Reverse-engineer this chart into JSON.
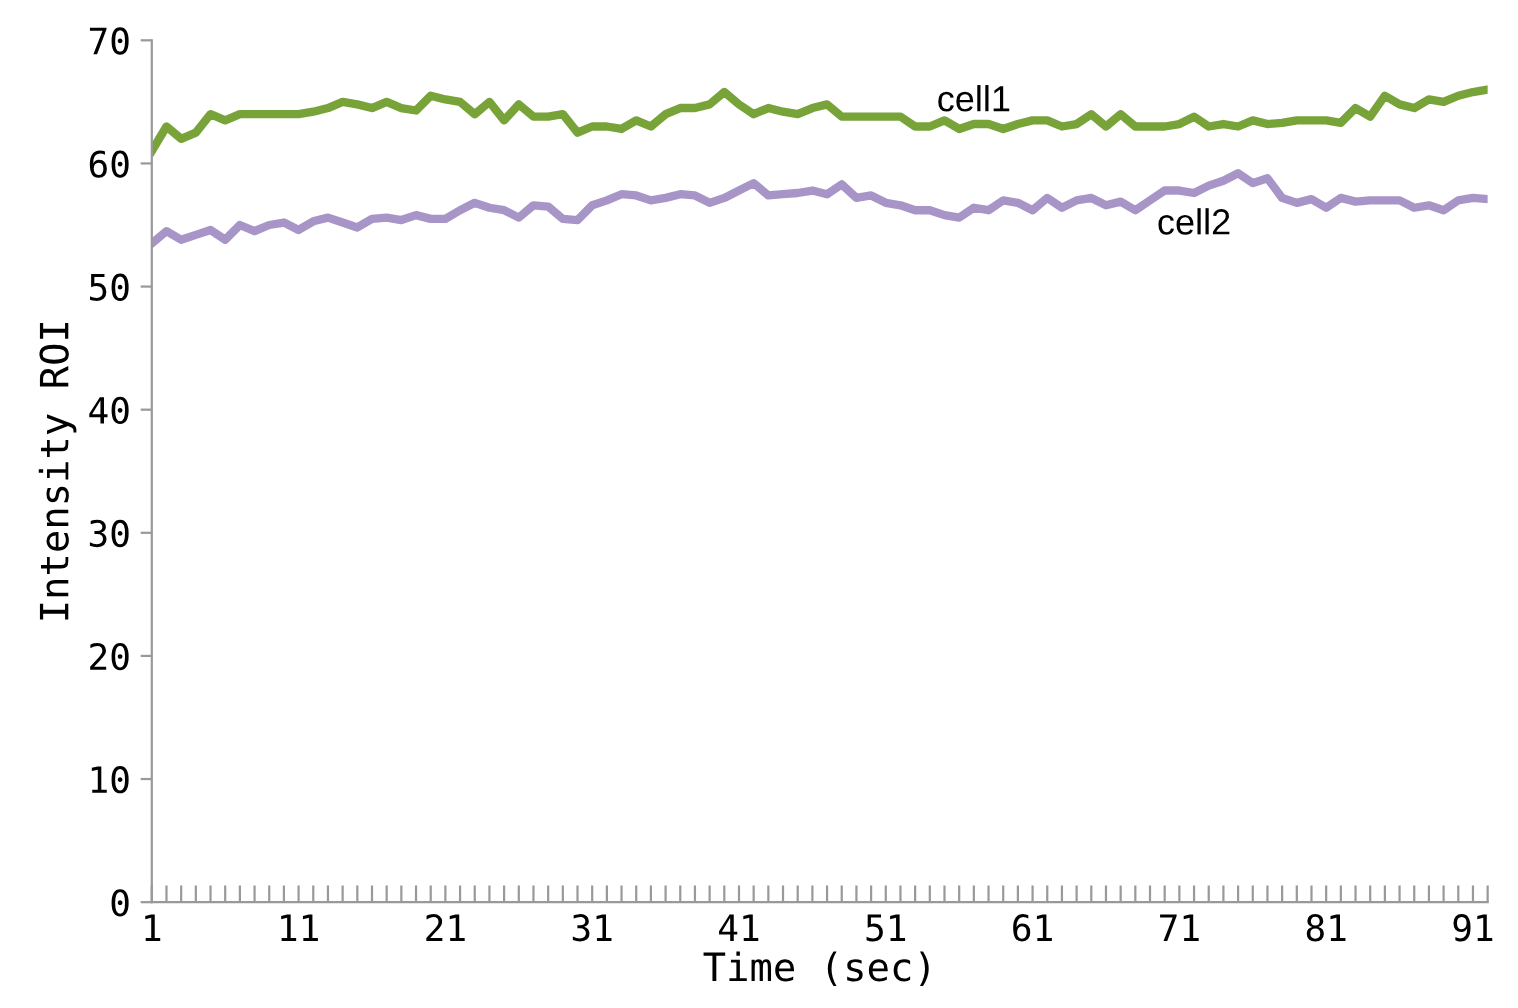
{
  "chart_data": {
    "type": "line",
    "xlabel": "Time (sec)",
    "ylabel": "Intensity ROI",
    "x": [
      1,
      2,
      3,
      4,
      5,
      6,
      7,
      8,
      9,
      10,
      11,
      12,
      13,
      14,
      15,
      16,
      17,
      18,
      19,
      20,
      21,
      22,
      23,
      24,
      25,
      26,
      27,
      28,
      29,
      30,
      31,
      32,
      33,
      34,
      35,
      36,
      37,
      38,
      39,
      40,
      41,
      42,
      43,
      44,
      45,
      46,
      47,
      48,
      49,
      50,
      51,
      52,
      53,
      54,
      55,
      56,
      57,
      58,
      59,
      60,
      61,
      62,
      63,
      64,
      65,
      66,
      67,
      68,
      69,
      70,
      71,
      72,
      73,
      74,
      75,
      76,
      77,
      78,
      79,
      80,
      81,
      82,
      83,
      84,
      85,
      86,
      87,
      88,
      89,
      90,
      91,
      92
    ],
    "series": [
      {
        "name": "cell1",
        "color": "#77a339",
        "values": [
          61,
          63,
          62,
          62.5,
          64,
          63.5,
          64,
          64,
          64,
          64,
          64,
          64.2,
          64.5,
          65,
          64.8,
          64.5,
          65,
          64.5,
          64.3,
          65.5,
          65.2,
          65,
          64,
          65,
          63.5,
          64.8,
          63.8,
          63.8,
          64,
          62.5,
          63,
          63,
          62.8,
          63.5,
          63,
          64,
          64.5,
          64.5,
          64.8,
          65.8,
          64.8,
          64,
          64.5,
          64.2,
          64,
          64.5,
          64.8,
          63.8,
          63.8,
          63.8,
          63.8,
          63.8,
          63,
          63,
          63.5,
          62.8,
          63.2,
          63.2,
          62.8,
          63.2,
          63.5,
          63.5,
          63,
          63.2,
          64,
          63,
          64,
          63,
          63,
          63,
          63.2,
          63.8,
          63,
          63.2,
          63,
          63.5,
          63.2,
          63.3,
          63.5,
          63.5,
          63.5,
          63.3,
          64.5,
          63.8,
          65.5,
          64.8,
          64.5,
          65.2,
          65,
          65.5,
          65.8,
          66
        ]
      },
      {
        "name": "cell2",
        "color": "#a895c8",
        "values": [
          53.5,
          54.5,
          53.8,
          54.2,
          54.6,
          53.8,
          55,
          54.5,
          55,
          55.2,
          54.6,
          55.3,
          55.6,
          55.2,
          54.8,
          55.5,
          55.6,
          55.4,
          55.8,
          55.5,
          55.5,
          56.2,
          56.8,
          56.4,
          56.2,
          55.6,
          56.6,
          56.5,
          55.5,
          55.4,
          56.6,
          57,
          57.5,
          57.4,
          57,
          57.2,
          57.5,
          57.4,
          56.8,
          57.2,
          57.8,
          58.4,
          57.4,
          57.5,
          57.6,
          57.8,
          57.5,
          58.3,
          57.2,
          57.4,
          56.8,
          56.6,
          56.2,
          56.2,
          55.8,
          55.6,
          56.4,
          56.2,
          57,
          56.8,
          56.2,
          57.2,
          56.4,
          57,
          57.2,
          56.6,
          56.9,
          56.2,
          57,
          57.8,
          57.8,
          57.6,
          58.2,
          58.6,
          59.2,
          58.4,
          58.8,
          57.2,
          56.8,
          57.1,
          56.4,
          57.2,
          56.9,
          57,
          57,
          57,
          56.4,
          56.6,
          56.2,
          57,
          57.2,
          57.1
        ]
      }
    ],
    "xlim": [
      1,
      92
    ],
    "xticks": [
      1,
      {
        "value": 2,
        "label": null
      },
      {
        "value": 3,
        "label": null
      },
      {
        "value": 4,
        "label": null
      },
      {
        "value": 5,
        "label": null
      },
      {
        "value": 6,
        "label": null
      },
      {
        "value": 7,
        "label": null
      },
      {
        "value": 8,
        "label": null
      },
      {
        "value": 9,
        "label": null
      },
      {
        "value": 10,
        "label": null
      },
      11,
      {
        "value": 12,
        "label": null
      },
      {
        "value": 13,
        "label": null
      },
      {
        "value": 14,
        "label": null
      },
      {
        "value": 15,
        "label": null
      },
      {
        "value": 16,
        "label": null
      },
      {
        "value": 17,
        "label": null
      },
      {
        "value": 18,
        "label": null
      },
      {
        "value": 19,
        "label": null
      },
      {
        "value": 20,
        "label": null
      },
      21,
      {
        "value": 22,
        "label": null
      },
      {
        "value": 23,
        "label": null
      },
      {
        "value": 24,
        "label": null
      },
      {
        "value": 25,
        "label": null
      },
      {
        "value": 26,
        "label": null
      },
      {
        "value": 27,
        "label": null
      },
      {
        "value": 28,
        "label": null
      },
      {
        "value": 29,
        "label": null
      },
      {
        "value": 30,
        "label": null
      },
      31,
      {
        "value": 32,
        "label": null
      },
      {
        "value": 33,
        "label": null
      },
      {
        "value": 34,
        "label": null
      },
      {
        "value": 35,
        "label": null
      },
      {
        "value": 36,
        "label": null
      },
      {
        "value": 37,
        "label": null
      },
      {
        "value": 38,
        "label": null
      },
      {
        "value": 39,
        "label": null
      },
      {
        "value": 40,
        "label": null
      },
      41,
      {
        "value": 42,
        "label": null
      },
      {
        "value": 43,
        "label": null
      },
      {
        "value": 44,
        "label": null
      },
      {
        "value": 45,
        "label": null
      },
      {
        "value": 46,
        "label": null
      },
      {
        "value": 47,
        "label": null
      },
      {
        "value": 48,
        "label": null
      },
      {
        "value": 49,
        "label": null
      },
      {
        "value": 50,
        "label": null
      },
      51,
      {
        "value": 52,
        "label": null
      },
      {
        "value": 53,
        "label": null
      },
      {
        "value": 54,
        "label": null
      },
      {
        "value": 55,
        "label": null
      },
      {
        "value": 56,
        "label": null
      },
      {
        "value": 57,
        "label": null
      },
      {
        "value": 58,
        "label": null
      },
      {
        "value": 59,
        "label": null
      },
      {
        "value": 60,
        "label": null
      },
      61,
      {
        "value": 62,
        "label": null
      },
      {
        "value": 63,
        "label": null
      },
      {
        "value": 64,
        "label": null
      },
      {
        "value": 65,
        "label": null
      },
      {
        "value": 66,
        "label": null
      },
      {
        "value": 67,
        "label": null
      },
      {
        "value": 68,
        "label": null
      },
      {
        "value": 69,
        "label": null
      },
      {
        "value": 70,
        "label": null
      },
      71,
      {
        "value": 72,
        "label": null
      },
      {
        "value": 73,
        "label": null
      },
      {
        "value": 74,
        "label": null
      },
      {
        "value": 75,
        "label": null
      },
      {
        "value": 76,
        "label": null
      },
      {
        "value": 77,
        "label": null
      },
      {
        "value": 78,
        "label": null
      },
      {
        "value": 79,
        "label": null
      },
      {
        "value": 80,
        "label": null
      },
      81,
      {
        "value": 82,
        "label": null
      },
      {
        "value": 83,
        "label": null
      },
      {
        "value": 84,
        "label": null
      },
      {
        "value": 85,
        "label": null
      },
      {
        "value": 86,
        "label": null
      },
      {
        "value": 87,
        "label": null
      },
      {
        "value": 88,
        "label": null
      },
      {
        "value": 89,
        "label": null
      },
      {
        "value": 90,
        "label": null
      },
      91,
      {
        "value": 92,
        "label": null
      }
    ],
    "ylim": [
      0,
      70
    ],
    "yticks": [
      0,
      10,
      20,
      30,
      40,
      50,
      60,
      70
    ],
    "grid": false,
    "legend": false,
    "marker": "none",
    "line_style": "solid"
  }
}
